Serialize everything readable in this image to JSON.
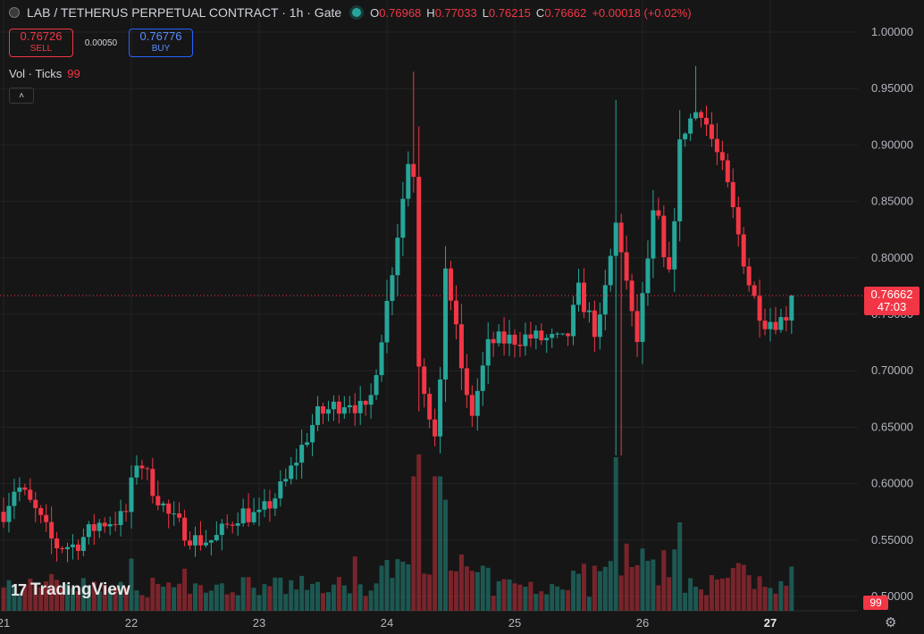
{
  "legend": {
    "symbol": "LAB / TETHERUS PERPETUAL CONTRACT · 1h · Gate",
    "open_label": "O",
    "open": "0.76968",
    "high_label": "H",
    "high": "0.77033",
    "low_label": "L",
    "low": "0.76215",
    "close_label": "C",
    "close": "0.76662",
    "change": "+0.00018 (+0.02%)"
  },
  "trade": {
    "sell_price": "0.76726",
    "sell_label": "SELL",
    "spread": "0.00050",
    "buy_price": "0.76776",
    "buy_label": "BUY"
  },
  "volume_indicator": {
    "label": "Vol · Ticks",
    "value": "99"
  },
  "branding": {
    "name": "TradingView"
  },
  "last_price": {
    "price": "0.76662",
    "countdown": "47:03"
  },
  "volume_tag": "99",
  "colors": {
    "up": "#26a69a",
    "down": "#f23645",
    "background": "#161616"
  },
  "icons": {
    "collapse": "chevron-up-icon",
    "settings": "gear-icon"
  },
  "chart_data": {
    "type": "candlestick",
    "interval": "1h",
    "x_tick_labels": [
      "21",
      "22",
      "23",
      "24",
      "25",
      "26",
      "27"
    ],
    "y_tick_labels": [
      "1.00000",
      "0.95000",
      "0.90000",
      "0.85000",
      "0.80000",
      "0.75000",
      "0.70000",
      "0.65000",
      "0.60000",
      "0.55000",
      "0.50000"
    ],
    "ylim": [
      0.5,
      1.0
    ],
    "last_price": 0.76662,
    "grid": true,
    "anchors": [
      {
        "day": 21.0,
        "price": 0.575
      },
      {
        "day": 21.1,
        "price": 0.6
      },
      {
        "day": 21.25,
        "price": 0.575
      },
      {
        "day": 21.4,
        "price": 0.545
      },
      {
        "day": 21.55,
        "price": 0.545
      },
      {
        "day": 21.75,
        "price": 0.565
      },
      {
        "day": 21.95,
        "price": 0.57
      },
      {
        "day": 22.05,
        "price": 0.625
      },
      {
        "day": 22.15,
        "price": 0.6
      },
      {
        "day": 22.3,
        "price": 0.57
      },
      {
        "day": 22.5,
        "price": 0.55
      },
      {
        "day": 22.65,
        "price": 0.55
      },
      {
        "day": 22.85,
        "price": 0.575
      },
      {
        "day": 23.0,
        "price": 0.57
      },
      {
        "day": 23.2,
        "price": 0.6
      },
      {
        "day": 23.45,
        "price": 0.66
      },
      {
        "day": 23.7,
        "price": 0.675
      },
      {
        "day": 23.85,
        "price": 0.66
      },
      {
        "day": 24.0,
        "price": 0.76
      },
      {
        "day": 24.2,
        "price": 0.91
      },
      {
        "day": 24.25,
        "price": 0.71
      },
      {
        "day": 24.4,
        "price": 0.625
      },
      {
        "day": 24.45,
        "price": 0.8
      },
      {
        "day": 24.65,
        "price": 0.655
      },
      {
        "day": 24.8,
        "price": 0.725
      },
      {
        "day": 25.1,
        "price": 0.73
      },
      {
        "day": 25.4,
        "price": 0.725
      },
      {
        "day": 25.5,
        "price": 0.77
      },
      {
        "day": 25.65,
        "price": 0.73
      },
      {
        "day": 25.8,
        "price": 0.835
      },
      {
        "day": 25.95,
        "price": 0.72
      },
      {
        "day": 26.1,
        "price": 0.85
      },
      {
        "day": 26.2,
        "price": 0.77
      },
      {
        "day": 26.3,
        "price": 0.91
      },
      {
        "day": 26.45,
        "price": 0.935
      },
      {
        "day": 26.65,
        "price": 0.87
      },
      {
        "day": 26.85,
        "price": 0.77
      },
      {
        "day": 26.95,
        "price": 0.745
      },
      {
        "day": 27.1,
        "price": 0.745
      },
      {
        "day": 27.2,
        "price": 0.7666
      }
    ],
    "volume_spikes": [
      {
        "day": 24.2,
        "ticks": 4200
      },
      {
        "day": 24.4,
        "ticks": 4200
      },
      {
        "day": 25.8,
        "ticks": 4800
      },
      {
        "day": 25.87,
        "ticks": 2100
      },
      {
        "day": 23.75,
        "ticks": 1700
      }
    ]
  }
}
